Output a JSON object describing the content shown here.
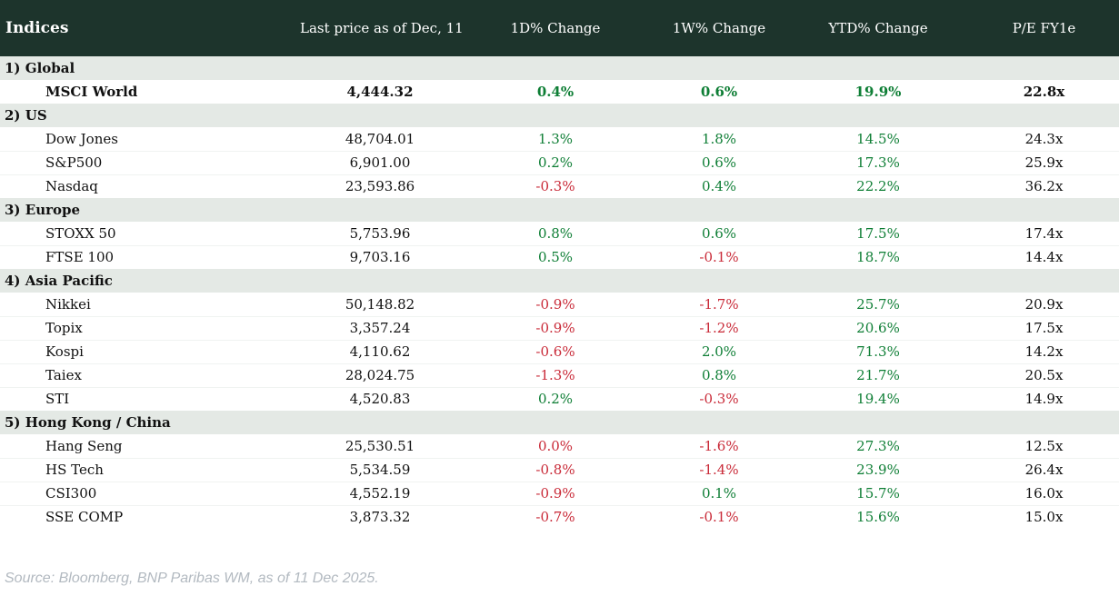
{
  "page": {
    "footer_source": "Source: Bloomberg, BNP Paribas WM, as of 11 Dec 2025."
  },
  "colors": {
    "header_bg": "#1d342c",
    "band_bg": "#e4e9e5",
    "positive_green": "#0e7e35",
    "negative_red": "#c92a38",
    "footer_gray": "#b2b9c0"
  },
  "chart_data": {
    "type": "table",
    "title": "Indices",
    "columns": [
      "Last price as of Dec, 11",
      "1D% Change",
      "1W% Change",
      "YTD% Change",
      "P/E FY1e"
    ],
    "sections": [
      {
        "label": "1) Global",
        "rows": [
          {
            "name": "MSCI World",
            "bold": true,
            "last": "4,444.32",
            "chg_1d": "0.4%",
            "chg_1d_dir": "pos",
            "chg_1w": "0.6%",
            "chg_1w_dir": "pos",
            "chg_ytd": "19.9%",
            "chg_ytd_dir": "pos",
            "pe": "22.8x"
          }
        ]
      },
      {
        "label": "2) US",
        "rows": [
          {
            "name": "Dow Jones",
            "bold": false,
            "last": "48,704.01",
            "chg_1d": "1.3%",
            "chg_1d_dir": "pos",
            "chg_1w": "1.8%",
            "chg_1w_dir": "pos",
            "chg_ytd": "14.5%",
            "chg_ytd_dir": "pos",
            "pe": "24.3x"
          },
          {
            "name": "S&P500",
            "bold": false,
            "last": "6,901.00",
            "chg_1d": "0.2%",
            "chg_1d_dir": "pos",
            "chg_1w": "0.6%",
            "chg_1w_dir": "pos",
            "chg_ytd": "17.3%",
            "chg_ytd_dir": "pos",
            "pe": "25.9x"
          },
          {
            "name": "Nasdaq",
            "bold": false,
            "last": "23,593.86",
            "chg_1d": "-0.3%",
            "chg_1d_dir": "neg",
            "chg_1w": "0.4%",
            "chg_1w_dir": "pos",
            "chg_ytd": "22.2%",
            "chg_ytd_dir": "pos",
            "pe": "36.2x"
          }
        ]
      },
      {
        "label": "3) Europe",
        "rows": [
          {
            "name": "STOXX 50",
            "bold": false,
            "last": "5,753.96",
            "chg_1d": "0.8%",
            "chg_1d_dir": "pos",
            "chg_1w": "0.6%",
            "chg_1w_dir": "pos",
            "chg_ytd": "17.5%",
            "chg_ytd_dir": "pos",
            "pe": "17.4x"
          },
          {
            "name": "FTSE 100",
            "bold": false,
            "last": "9,703.16",
            "chg_1d": "0.5%",
            "chg_1d_dir": "pos",
            "chg_1w": "-0.1%",
            "chg_1w_dir": "neg",
            "chg_ytd": "18.7%",
            "chg_ytd_dir": "pos",
            "pe": "14.4x"
          }
        ]
      },
      {
        "label": "4) Asia Pacific",
        "rows": [
          {
            "name": "Nikkei",
            "bold": false,
            "last": "50,148.82",
            "chg_1d": "-0.9%",
            "chg_1d_dir": "neg",
            "chg_1w": "-1.7%",
            "chg_1w_dir": "neg",
            "chg_ytd": "25.7%",
            "chg_ytd_dir": "pos",
            "pe": "20.9x"
          },
          {
            "name": "Topix",
            "bold": false,
            "last": "3,357.24",
            "chg_1d": "-0.9%",
            "chg_1d_dir": "neg",
            "chg_1w": "-1.2%",
            "chg_1w_dir": "neg",
            "chg_ytd": "20.6%",
            "chg_ytd_dir": "pos",
            "pe": "17.5x"
          },
          {
            "name": "Kospi",
            "bold": false,
            "last": "4,110.62",
            "chg_1d": "-0.6%",
            "chg_1d_dir": "neg",
            "chg_1w": "2.0%",
            "chg_1w_dir": "pos",
            "chg_ytd": "71.3%",
            "chg_ytd_dir": "pos",
            "pe": "14.2x"
          },
          {
            "name": "Taiex",
            "bold": false,
            "last": "28,024.75",
            "chg_1d": "-1.3%",
            "chg_1d_dir": "neg",
            "chg_1w": "0.8%",
            "chg_1w_dir": "pos",
            "chg_ytd": "21.7%",
            "chg_ytd_dir": "pos",
            "pe": "20.5x"
          },
          {
            "name": "STI",
            "bold": false,
            "last": "4,520.83",
            "chg_1d": "0.2%",
            "chg_1d_dir": "pos",
            "chg_1w": "-0.3%",
            "chg_1w_dir": "neg",
            "chg_ytd": "19.4%",
            "chg_ytd_dir": "pos",
            "pe": "14.9x"
          }
        ]
      },
      {
        "label": "5) Hong Kong / China",
        "rows": [
          {
            "name": "Hang Seng",
            "bold": false,
            "last": "25,530.51",
            "chg_1d": "0.0%",
            "chg_1d_dir": "neg",
            "chg_1w": "-1.6%",
            "chg_1w_dir": "neg",
            "chg_ytd": "27.3%",
            "chg_ytd_dir": "pos",
            "pe": "12.5x"
          },
          {
            "name": "HS Tech",
            "bold": false,
            "last": "5,534.59",
            "chg_1d": "-0.8%",
            "chg_1d_dir": "neg",
            "chg_1w": "-1.4%",
            "chg_1w_dir": "neg",
            "chg_ytd": "23.9%",
            "chg_ytd_dir": "pos",
            "pe": "26.4x"
          },
          {
            "name": "CSI300",
            "bold": false,
            "last": "4,552.19",
            "chg_1d": "-0.9%",
            "chg_1d_dir": "neg",
            "chg_1w": "0.1%",
            "chg_1w_dir": "pos",
            "chg_ytd": "15.7%",
            "chg_ytd_dir": "pos",
            "pe": "16.0x"
          },
          {
            "name": "SSE COMP",
            "bold": false,
            "last": "3,873.32",
            "chg_1d": "-0.7%",
            "chg_1d_dir": "neg",
            "chg_1w": "-0.1%",
            "chg_1w_dir": "neg",
            "chg_ytd": "15.6%",
            "chg_ytd_dir": "pos",
            "pe": "15.0x"
          }
        ]
      }
    ]
  }
}
